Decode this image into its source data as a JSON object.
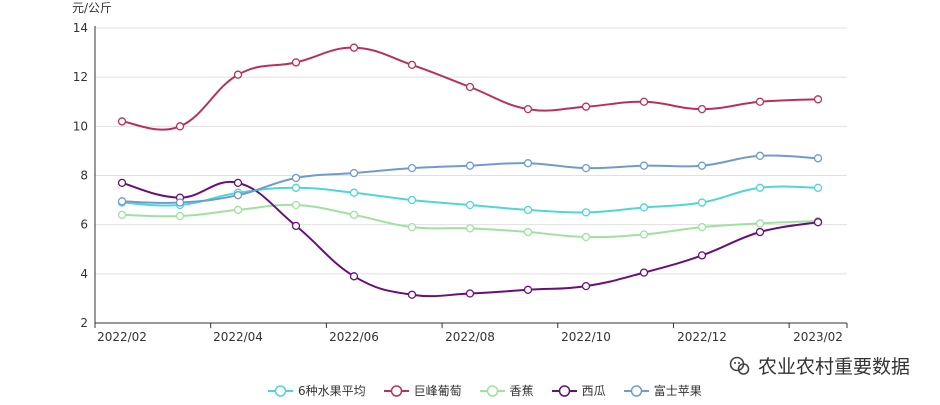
{
  "chart_data": {
    "type": "line",
    "y_unit": "元/公斤",
    "ylim": [
      2,
      14
    ],
    "yticks": [
      2,
      4,
      6,
      8,
      10,
      12,
      14
    ],
    "xlabels": [
      "2022/02",
      "2022/04",
      "2022/06",
      "2022/08",
      "2022/10",
      "2022/12",
      "2023/02"
    ],
    "x": [
      "2022/02",
      "2022/03",
      "2022/04",
      "2022/05",
      "2022/06",
      "2022/07",
      "2022/08",
      "2022/09",
      "2022/10",
      "2022/11",
      "2022/12",
      "2023/01",
      "2023/02"
    ],
    "grid": true,
    "legend_position": "bottom",
    "series": [
      {
        "name": "6种水果平均",
        "color": "#4fd6d6",
        "values": [
          6.9,
          6.8,
          7.3,
          7.5,
          7.3,
          7.0,
          6.8,
          6.6,
          6.5,
          6.7,
          6.9,
          7.5,
          7.5
        ]
      },
      {
        "name": "巨峰葡萄",
        "color": "#b9305d",
        "values": [
          10.2,
          10.0,
          12.1,
          12.6,
          13.2,
          12.5,
          11.6,
          10.7,
          10.8,
          11.0,
          10.7,
          11.0,
          11.1
        ]
      },
      {
        "name": "香蕉",
        "color": "#9de39d",
        "values": [
          6.4,
          6.35,
          6.6,
          6.8,
          6.4,
          5.9,
          5.85,
          5.7,
          5.5,
          5.6,
          5.9,
          6.05,
          6.15
        ]
      },
      {
        "name": "西瓜",
        "color": "#6a0f7a",
        "values": [
          7.7,
          7.1,
          7.7,
          5.95,
          3.9,
          3.15,
          3.2,
          3.35,
          3.5,
          4.05,
          4.75,
          5.7,
          6.1
        ]
      },
      {
        "name": "富士苹果",
        "color": "#6f9ccf",
        "values": [
          6.95,
          6.9,
          7.2,
          7.9,
          8.1,
          8.3,
          8.4,
          8.5,
          8.3,
          8.4,
          8.4,
          8.8,
          8.7
        ]
      }
    ]
  },
  "watermark": {
    "text": "农业农村重要数据",
    "icon": "wechat-icon"
  }
}
